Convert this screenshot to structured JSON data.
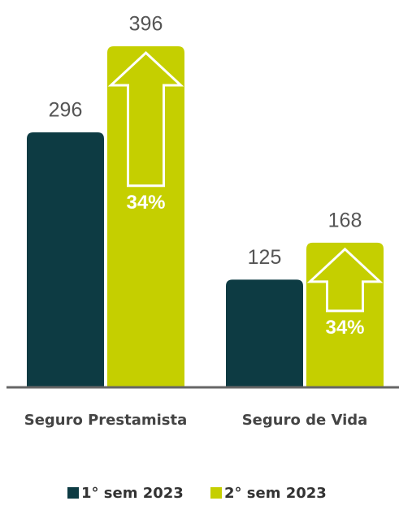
{
  "chart_data": {
    "type": "bar",
    "categories": [
      "Seguro Prestamista",
      "Seguro de Vida"
    ],
    "series": [
      {
        "name": "1° sem 2023",
        "color": "#0d3b43",
        "values": [
          296,
          125
        ]
      },
      {
        "name": "2° sem 2023",
        "color": "#c5cf00",
        "values": [
          396,
          168
        ]
      }
    ],
    "annotations": [
      "34%",
      "34%"
    ]
  }
}
